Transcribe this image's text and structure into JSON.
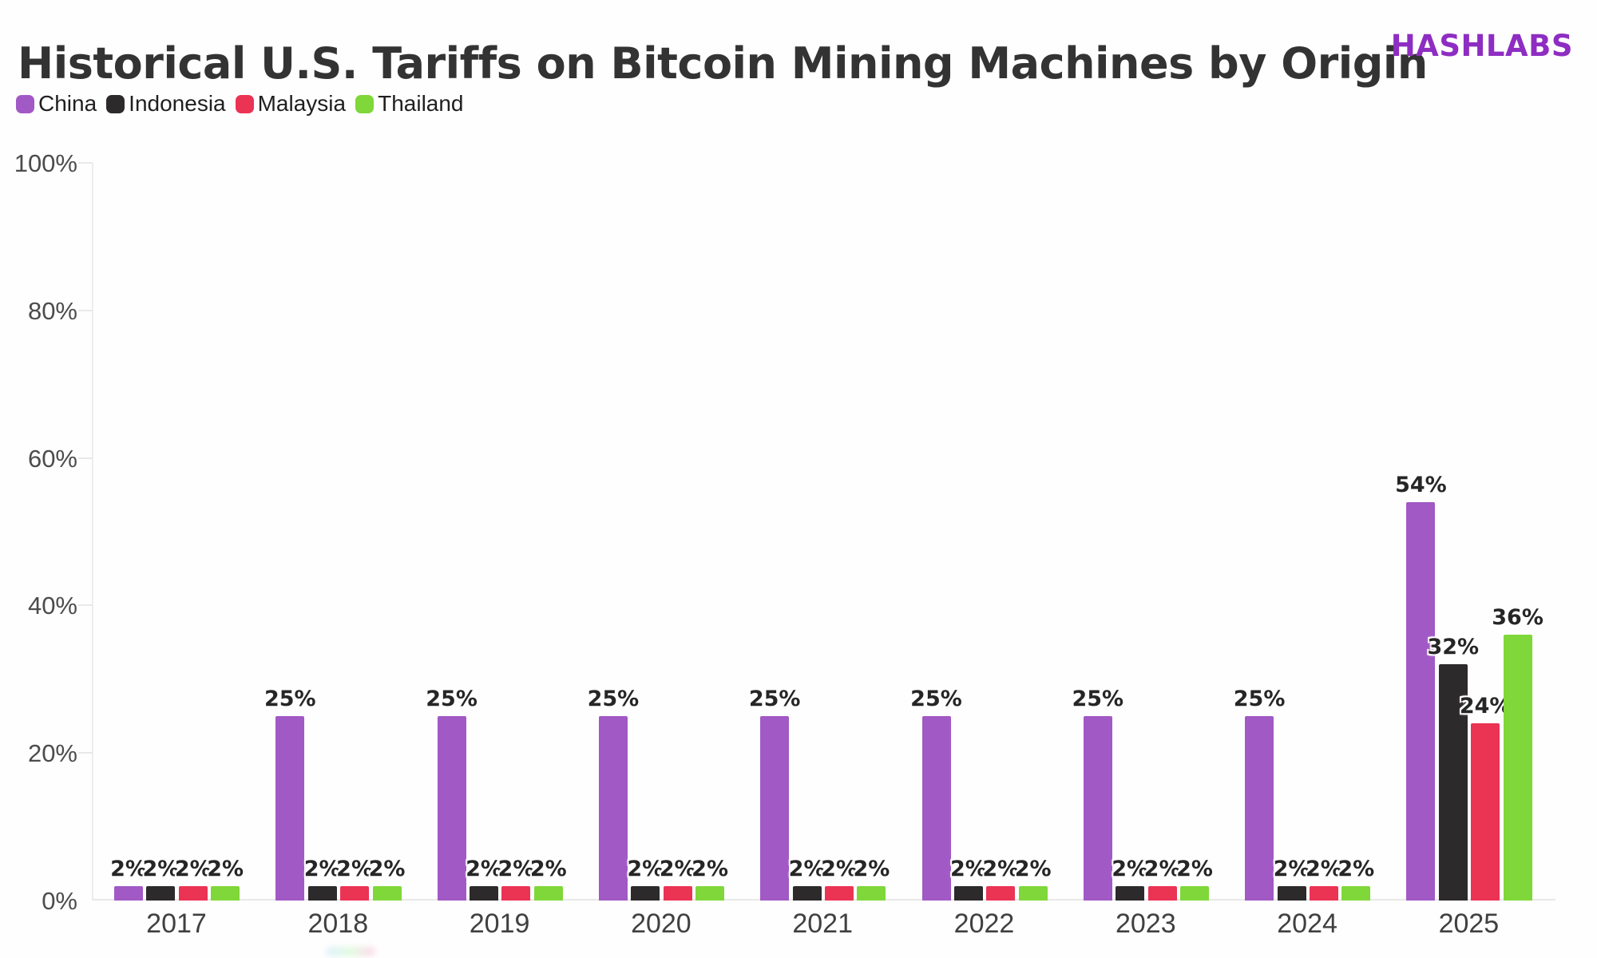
{
  "header": {
    "title": "Historical U.S. Tariffs on Bitcoin Mining Machines by Origin",
    "logo": "HASHLABS",
    "logo_color": "#8e2dc2"
  },
  "chart_data": {
    "type": "bar",
    "title": "Historical U.S. Tariffs on Bitcoin Mining Machines by Origin",
    "categories": [
      "2017",
      "2018",
      "2019",
      "2020",
      "2021",
      "2022",
      "2023",
      "2024",
      "2025"
    ],
    "series": [
      {
        "name": "China",
        "color": "#a159c5",
        "values": [
          2,
          25,
          25,
          25,
          25,
          25,
          25,
          25,
          54
        ]
      },
      {
        "name": "Indonesia",
        "color": "#2d2a2b",
        "values": [
          2,
          2,
          2,
          2,
          2,
          2,
          2,
          2,
          32
        ]
      },
      {
        "name": "Malaysia",
        "color": "#eb3354",
        "values": [
          2,
          2,
          2,
          2,
          2,
          2,
          2,
          2,
          24
        ]
      },
      {
        "name": "Thailand",
        "color": "#7fd739",
        "values": [
          2,
          2,
          2,
          2,
          2,
          2,
          2,
          2,
          36
        ]
      }
    ],
    "xlabel": "",
    "ylabel": "",
    "ylim": [
      0,
      100
    ],
    "ytick_step": 20,
    "ytick_suffix": "%",
    "value_label_suffix": "%",
    "grid": false,
    "legend_position": "top-left",
    "axis_color": "#ededed",
    "tick_label_color": "#4c4c4c"
  }
}
